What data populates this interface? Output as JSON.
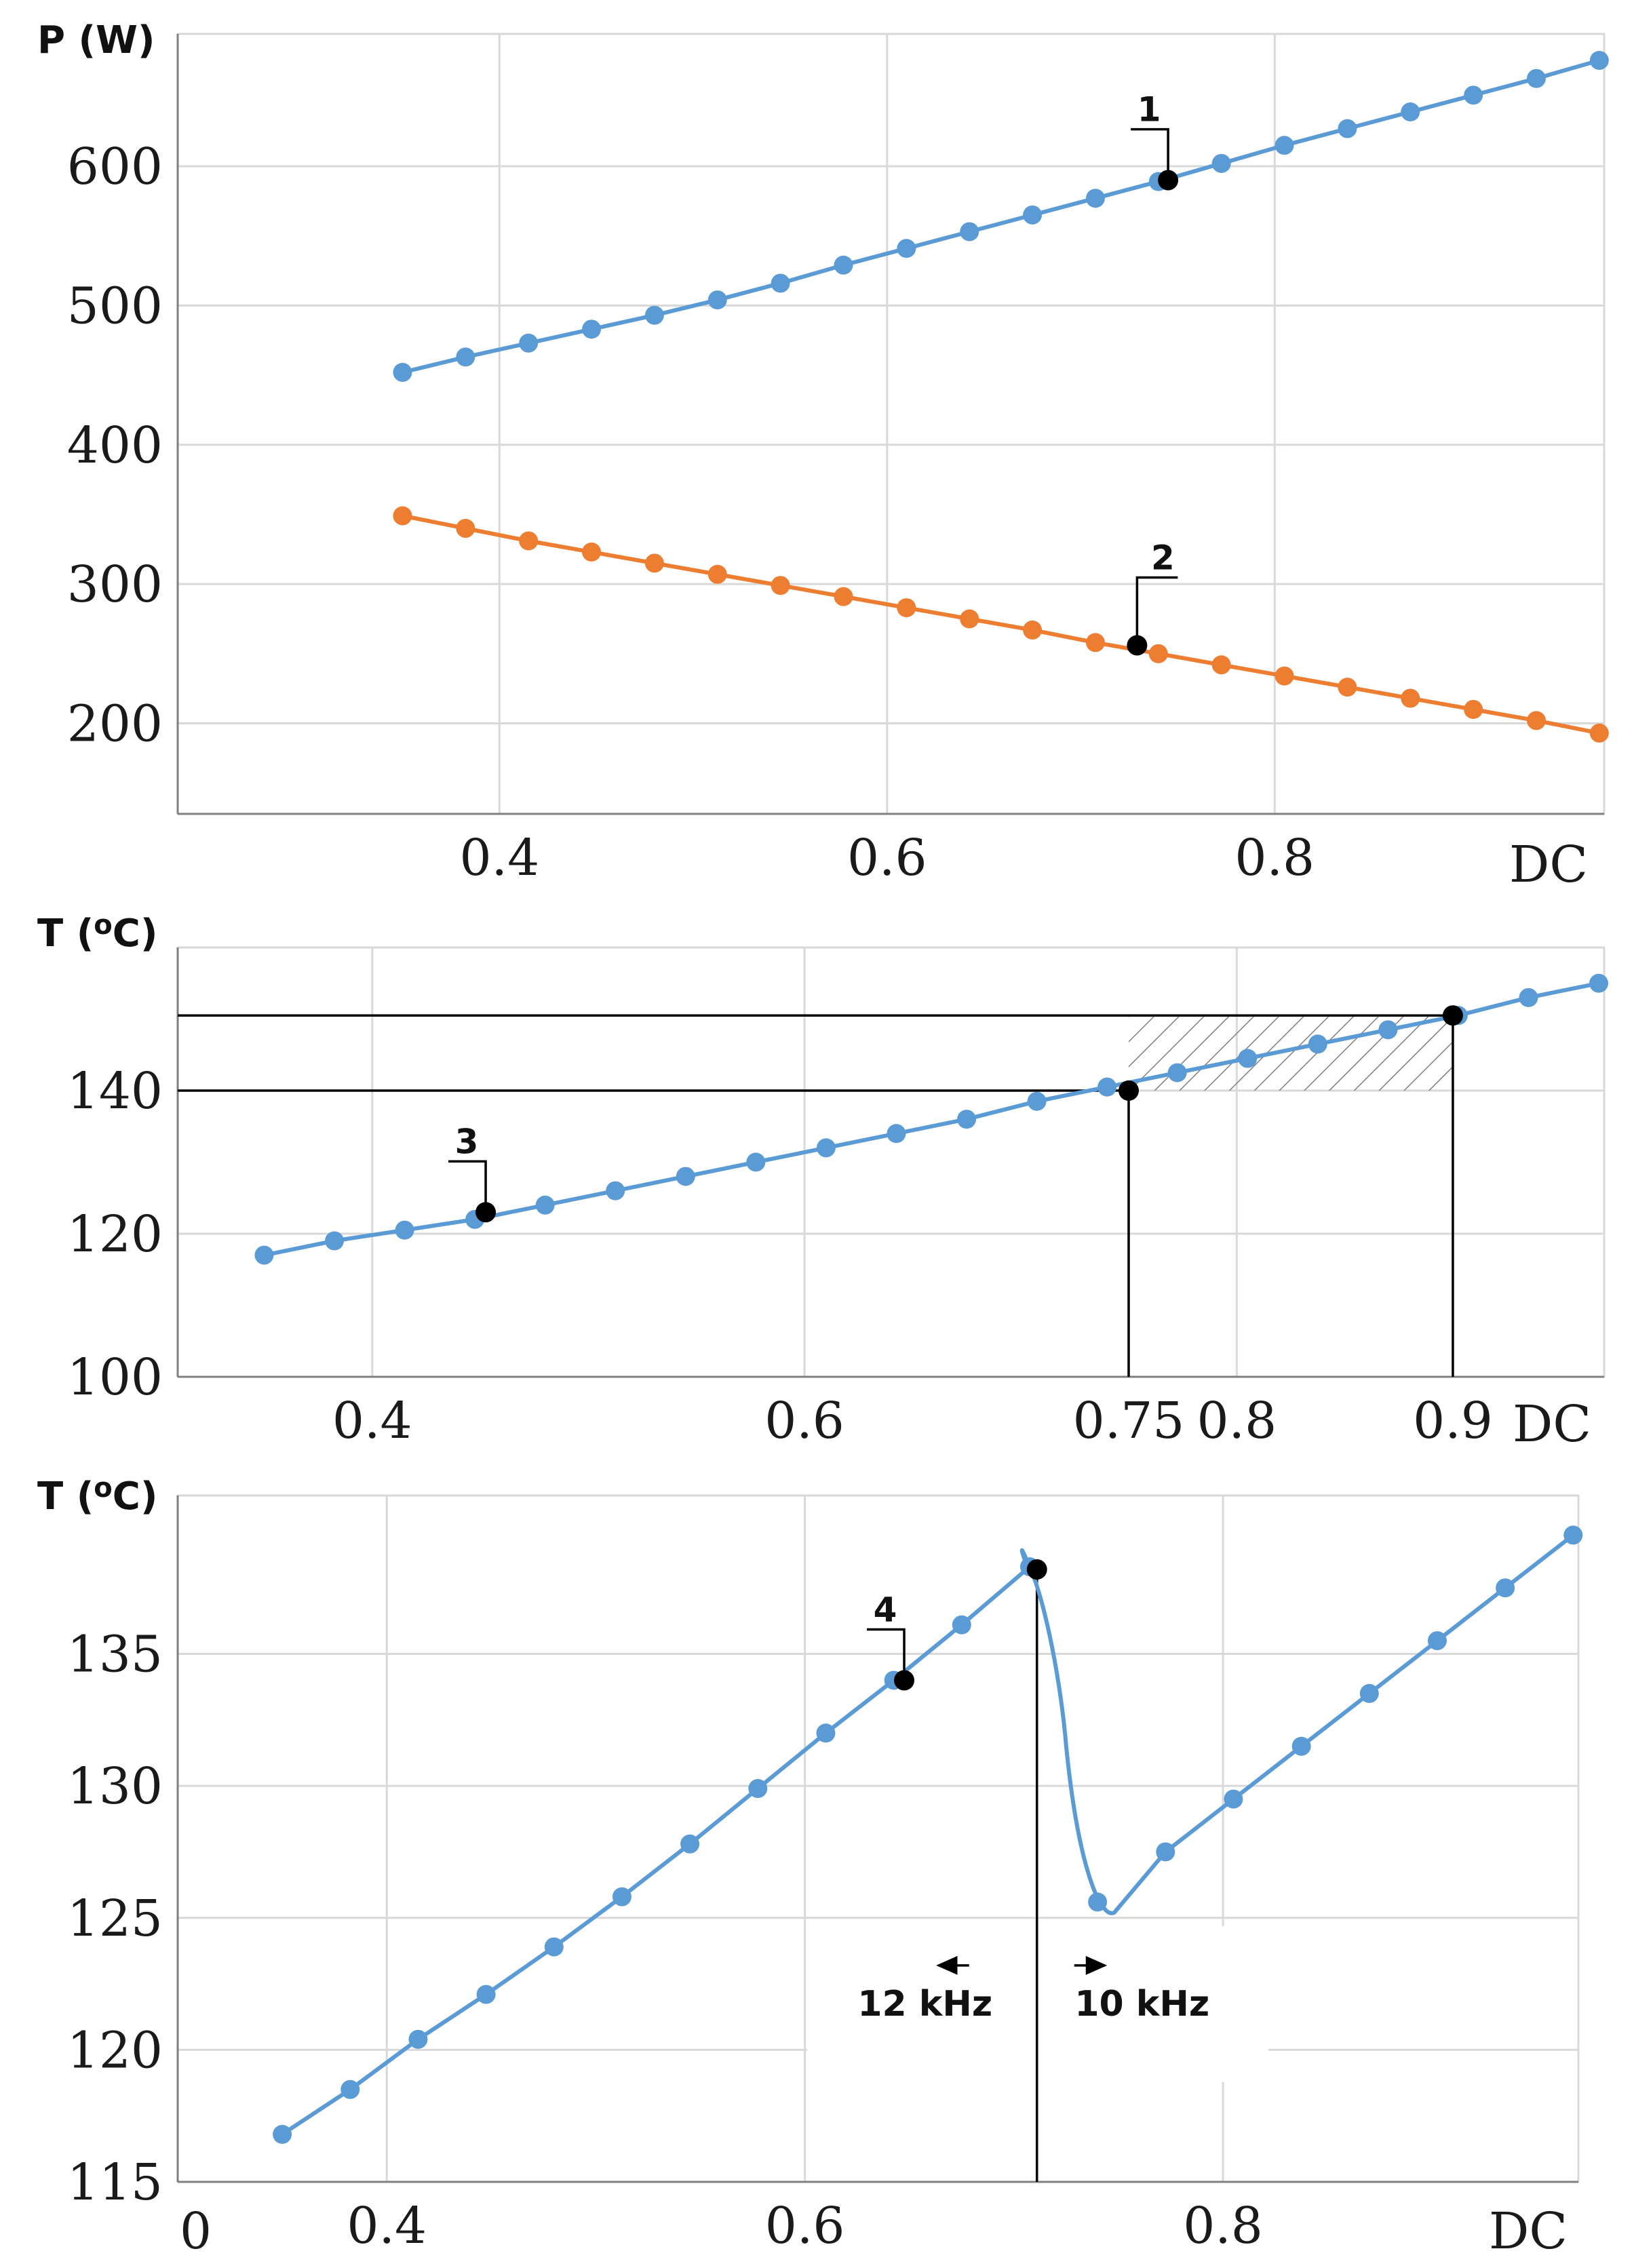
{
  "colors": {
    "blue": "#5b9bd5",
    "orange": "#ed7d31",
    "black": "#000000",
    "hatch": "#7f7f7f"
  },
  "chart_data": [
    {
      "type": "line",
      "ylabel": "P (W)",
      "xlabel": "DC",
      "xlim": [
        0.234,
        0.97
      ],
      "ylim": [
        135,
        695
      ],
      "xticks": [
        0.4,
        0.6,
        0.8
      ],
      "yticks": [
        200,
        300,
        400,
        500,
        600
      ],
      "series": [
        {
          "name": "blue",
          "color": "#5b9bd5",
          "x": [
            0.35,
            0.3825,
            0.415,
            0.4475,
            0.48,
            0.5125,
            0.545,
            0.5775,
            0.61,
            0.6425,
            0.675,
            0.7075,
            0.74,
            0.7725,
            0.805,
            0.8375,
            0.87,
            0.9025,
            0.935,
            0.9675
          ],
          "y": [
            452,
            463,
            473,
            483,
            493,
            504,
            516,
            529,
            541,
            553,
            565,
            577,
            589,
            602,
            615,
            627,
            639,
            651,
            663,
            676
          ]
        },
        {
          "name": "orange",
          "color": "#ed7d31",
          "x": [
            0.35,
            0.3825,
            0.415,
            0.4475,
            0.48,
            0.5125,
            0.545,
            0.5775,
            0.61,
            0.6425,
            0.675,
            0.7075,
            0.74,
            0.7725,
            0.805,
            0.8375,
            0.87,
            0.9025,
            0.935,
            0.9675
          ],
          "y": [
            349,
            340,
            331,
            323,
            315,
            307,
            299,
            291,
            283,
            275,
            267,
            258,
            250,
            242,
            234,
            226,
            218,
            210,
            202,
            193
          ]
        }
      ],
      "markers": [
        {
          "label": "1",
          "x": 0.745,
          "y": 590
        },
        {
          "label": "2",
          "x": 0.729,
          "y": 256
        }
      ]
    },
    {
      "type": "line",
      "ylabel": "T (°C)",
      "xlabel": "DC",
      "xlim": [
        0.31,
        0.97
      ],
      "ylim": [
        100,
        160
      ],
      "xticks": [
        0.4,
        0.6,
        0.75,
        0.8,
        0.9
      ],
      "yticks": [
        100,
        120,
        140
      ],
      "series": [
        {
          "name": "blue",
          "color": "#5b9bd5",
          "x": [
            0.35,
            0.3825,
            0.415,
            0.4475,
            0.48,
            0.5125,
            0.545,
            0.5775,
            0.61,
            0.6425,
            0.675,
            0.7075,
            0.74,
            0.7725,
            0.805,
            0.8375,
            0.87,
            0.9025,
            0.935,
            0.9675
          ],
          "y": [
            117,
            119,
            120.5,
            122,
            124,
            126,
            128,
            130,
            132,
            134,
            136,
            138.5,
            140.5,
            142.5,
            144.5,
            146.5,
            148.5,
            150.5,
            153,
            155
          ]
        }
      ],
      "thresholds": {
        "t_low": 140,
        "t_high": 150.5,
        "dc_low": 0.75,
        "dc_high": 0.9
      },
      "markers": [
        {
          "label": "3",
          "x": 0.4525,
          "y": 123
        },
        {
          "label": "",
          "x": 0.75,
          "y": 140
        },
        {
          "label": "",
          "x": 0.9,
          "y": 150.5
        }
      ]
    },
    {
      "type": "line",
      "ylabel": "T (°C)",
      "xlabel": "DC",
      "xlim": [
        0.3,
        0.97
      ],
      "ylim": [
        115,
        141
      ],
      "xticks": [
        0.4,
        0.6,
        0.8
      ],
      "yticks": [
        115,
        120,
        125,
        130,
        135
      ],
      "x_origin_label": "0",
      "series": [
        {
          "name": "blue",
          "color": "#5b9bd5",
          "x": [
            0.35,
            0.3825,
            0.415,
            0.4475,
            0.48,
            0.5125,
            0.545,
            0.5775,
            0.61,
            0.6425,
            0.675,
            0.7075,
            0.74,
            0.7725,
            0.805,
            0.8375,
            0.87,
            0.9025,
            0.935,
            0.9675
          ],
          "y": [
            116.8,
            118.5,
            120.4,
            122.1,
            123.9,
            125.8,
            127.8,
            129.9,
            132,
            134,
            136.1,
            138.3,
            125.6,
            127.5,
            129.5,
            131.5,
            133.5,
            135.5,
            137.5,
            139.5
          ]
        }
      ],
      "switch_dc": 0.711,
      "markers": [
        {
          "label": "4",
          "x": 0.6475,
          "y": 134
        },
        {
          "label": "",
          "x": 0.711,
          "y": 138.2
        }
      ],
      "annotations": [
        {
          "text": "12 kHz",
          "direction": "left"
        },
        {
          "text": "10 kHz",
          "direction": "right"
        }
      ]
    }
  ]
}
